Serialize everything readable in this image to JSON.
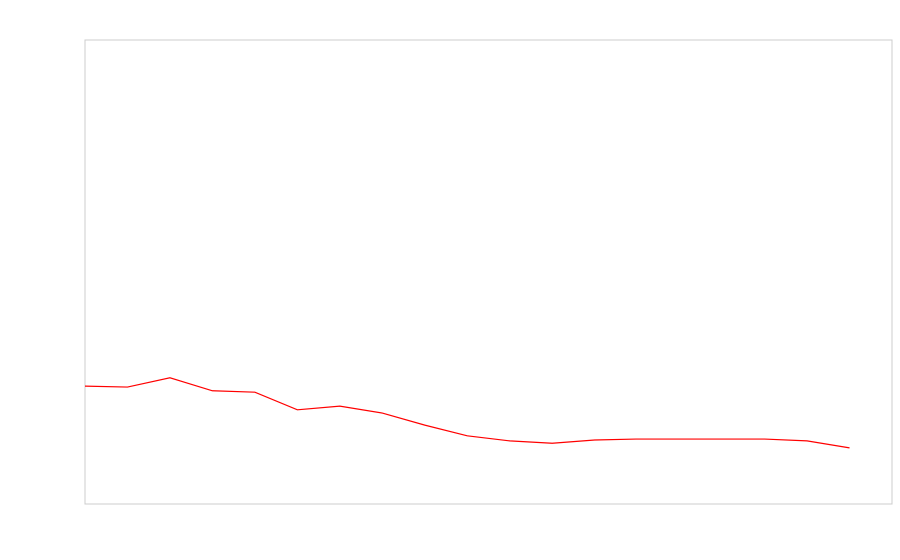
{
  "chart_data": {
    "type": "line",
    "categories": [
      null,
      null,
      null,
      null,
      null,
      null,
      null,
      null,
      null,
      null,
      null,
      null,
      null,
      null,
      null,
      null,
      null,
      null,
      null
    ],
    "series": [
      {
        "color": "#ff0000",
        "values": [
          25.4,
          25.2,
          27.2,
          24.4,
          24.1,
          20.3,
          21.1,
          19.6,
          17.0,
          14.7,
          13.6,
          13.1,
          13.8,
          14.0,
          14.0,
          14.0,
          14.0,
          13.6,
          12.1
        ]
      }
    ],
    "ylim": [
      0,
      100
    ]
  }
}
